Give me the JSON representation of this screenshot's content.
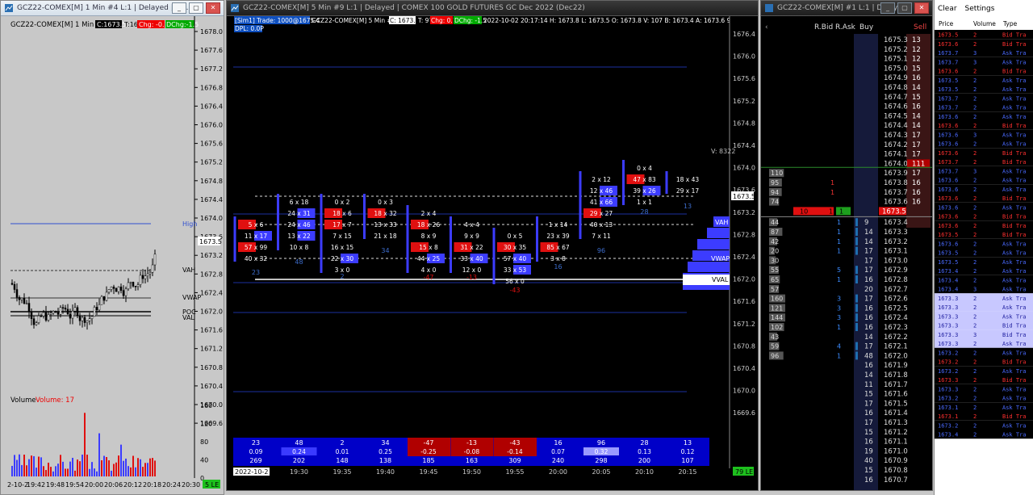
{
  "left_chart": {
    "title": "GCZ22-COMEX[M]  1 Min  #4 L:1 | Delayed | CO...",
    "header_instrument": "GCZ22-COMEX[M]  1 Min  #4",
    "close": "C:1673.5",
    "ticks": "T:16",
    "chg": "Chg: -0.1",
    "dchg": "DChg:-1.5",
    "price_labels": [
      "1678.0",
      "1677.6",
      "1677.2",
      "1676.8",
      "1676.4",
      "1676.0",
      "1675.6",
      "1675.2",
      "1674.8",
      "1674.4",
      "1674.0",
      "1673.6",
      "1673.2",
      "1672.8",
      "1672.4",
      "1672.0",
      "1671.6",
      "1671.2",
      "1670.8",
      "1670.4",
      "1670.0",
      "1669.6"
    ],
    "current_price": "1673.5",
    "level_labels": {
      "high": "High",
      "vah": "VAH",
      "vwap": "VWAP",
      "poc": "POC",
      "val": "VAL"
    },
    "volume_title": "Volume",
    "volume_value": "Volume: 17",
    "volume_axis": [
      "160",
      "120",
      "80",
      "40",
      "0"
    ],
    "time_labels": [
      "2-10-2",
      "19:42",
      "19:48",
      "19:54",
      "20:00",
      "20:06",
      "20:12",
      "20:18",
      "20:24",
      "20:30"
    ],
    "badge": "5 LE"
  },
  "main_chart": {
    "title": "GCZ22-COMEX[M]  5 Min  #9 L:1 | Delayed | COMEX 100 GOLD FUTURES GC Dec 2022 (Dec22)",
    "sim_trade": "[Sim1]  Trade: 1000@1675.4",
    "instrument": "GCZ22-COMEX[M]  5 Min  #9",
    "close": "C: 1673.5",
    "ticks": "T: 97",
    "chg": "Chg: 0.1",
    "dchg": "DChg: -1.5",
    "info": "2022-10-02  20:17:14  H: 1673.8  L: 1673.5  O: 1673.8  V: 107  B: 1673.4  A: 1673.6  9x12  TR: 2m 45",
    "dpl": "DPL: 0.0P",
    "price_labels": [
      "1676.4",
      "1676.0",
      "1675.6",
      "1675.2",
      "1674.8",
      "1674.4",
      "1674.0",
      "1673.6",
      "1673.2",
      "1672.8",
      "1672.4",
      "1672.0",
      "1671.6",
      "1671.2",
      "1670.8",
      "1670.4",
      "1670.0",
      "1669.6"
    ],
    "current_price": "1673.5",
    "volume_label": "V: 8322",
    "profile_labels": {
      "vah": "VAH",
      "vwap": "VWAP",
      "val": "VVAL"
    },
    "columns": [
      {
        "time": "19:30",
        "delta": "23",
        "ratio": "0.09",
        "vol": "269"
      },
      {
        "time": "19:35",
        "delta": "48",
        "ratio": "0.24",
        "vol": "202"
      },
      {
        "time": "19:40",
        "delta": "2",
        "ratio": "0.01",
        "vol": "148"
      },
      {
        "time": "19:45",
        "delta": "34",
        "ratio": "0.25",
        "vol": "138"
      },
      {
        "time": "19:50",
        "delta": "-47",
        "ratio": "-0.25",
        "vol": "185"
      },
      {
        "time": "19:55",
        "delta": "-13",
        "ratio": "-0.08",
        "vol": "163"
      },
      {
        "time": "20:00",
        "delta": "-43",
        "ratio": "-0.14",
        "vol": "309"
      },
      {
        "time": "20:05",
        "delta": "16",
        "ratio": "0.07",
        "vol": "240"
      },
      {
        "time": "20:10",
        "delta": "96",
        "ratio": "0.32",
        "vol": "298"
      },
      {
        "time": "20:15",
        "delta": "28",
        "ratio": "0.13",
        "vol": "200"
      },
      {
        "time": "",
        "delta": "13",
        "ratio": "0.12",
        "vol": "107"
      }
    ],
    "first_date": "2022-10-2",
    "badge": "79 LE"
  },
  "dom": {
    "title": "GCZ22-COMEX[M] #1 L:1 | Delaye...",
    "headers": {
      "rbid": "R.Bid",
      "rask": "R.Ask",
      "buy": "Buy",
      "sell": "Sell"
    },
    "ask_rows": [
      {
        "price": "1675.3",
        "sell": "13"
      },
      {
        "price": "1675.2",
        "sell": "12"
      },
      {
        "price": "1675.1",
        "sell": "12"
      },
      {
        "price": "1675.0",
        "sell": "15"
      },
      {
        "price": "1674.9",
        "sell": "16"
      },
      {
        "price": "1674.8",
        "sell": "14"
      },
      {
        "price": "1674.7",
        "sell": "15"
      },
      {
        "price": "1674.6",
        "sell": "16"
      },
      {
        "price": "1674.5",
        "sell": "14"
      },
      {
        "price": "1674.4",
        "sell": "14"
      },
      {
        "price": "1674.3",
        "sell": "17"
      },
      {
        "price": "1674.2",
        "sell": "17"
      },
      {
        "price": "1674.1",
        "sell": "17"
      },
      {
        "price": "1674.0",
        "sell": "111"
      },
      {
        "price": "1673.9",
        "sell": "17"
      },
      {
        "price": "1673.8",
        "sell": "16"
      },
      {
        "price": "1673.7",
        "sell": "16"
      },
      {
        "price": "1673.6",
        "sell": "16"
      }
    ],
    "ask_sizes": [
      "4",
      "110",
      "95",
      "94",
      "74"
    ],
    "rask_values": [
      "1",
      "1"
    ],
    "last_row": {
      "price": "1673.5",
      "bid": "10",
      "rbid": "1",
      "rask": "1"
    },
    "bid_rows": [
      {
        "price": "1673.4",
        "buy": "9",
        "size": "44",
        "rbid": "1"
      },
      {
        "price": "1673.3",
        "buy": "14",
        "size": "87",
        "rbid": "1"
      },
      {
        "price": "1673.2",
        "buy": "14",
        "size": "42",
        "rbid": "1"
      },
      {
        "price": "1673.1",
        "buy": "17",
        "size": "20",
        "rbid": "1"
      },
      {
        "price": "1673.0",
        "buy": "17",
        "size": "30",
        "rbid": ""
      },
      {
        "price": "1672.9",
        "buy": "17",
        "size": "55",
        "rbid": "5"
      },
      {
        "price": "1672.8",
        "buy": "16",
        "size": "65",
        "rbid": "1"
      },
      {
        "price": "1672.7",
        "buy": "20",
        "size": "57",
        "rbid": ""
      },
      {
        "price": "1672.6",
        "buy": "17",
        "size": "160",
        "rbid": "3"
      },
      {
        "price": "1672.5",
        "buy": "16",
        "size": "121",
        "rbid": "3"
      },
      {
        "price": "1672.4",
        "buy": "16",
        "size": "144",
        "rbid": "3"
      },
      {
        "price": "1672.3",
        "buy": "16",
        "size": "102",
        "rbid": "1"
      },
      {
        "price": "1672.2",
        "buy": "14",
        "size": "43",
        "rbid": ""
      },
      {
        "price": "1672.1",
        "buy": "17",
        "size": "59",
        "rbid": "4"
      },
      {
        "price": "1672.0",
        "buy": "48",
        "size": "96",
        "rbid": "1"
      },
      {
        "price": "1671.9",
        "buy": "16",
        "size": "",
        "rbid": ""
      },
      {
        "price": "1671.8",
        "buy": "14",
        "size": "",
        "rbid": ""
      },
      {
        "price": "1671.7",
        "buy": "11",
        "size": "",
        "rbid": ""
      },
      {
        "price": "1671.6",
        "buy": "15",
        "size": "",
        "rbid": ""
      },
      {
        "price": "1671.5",
        "buy": "17",
        "size": "",
        "rbid": ""
      },
      {
        "price": "1671.4",
        "buy": "16",
        "size": "",
        "rbid": ""
      },
      {
        "price": "1671.3",
        "buy": "17",
        "size": "",
        "rbid": ""
      },
      {
        "price": "1671.2",
        "buy": "15",
        "size": "",
        "rbid": ""
      },
      {
        "price": "1671.1",
        "buy": "16",
        "size": "",
        "rbid": ""
      },
      {
        "price": "1671.0",
        "buy": "19",
        "size": "",
        "rbid": ""
      },
      {
        "price": "1670.9",
        "buy": "40",
        "size": "",
        "rbid": ""
      },
      {
        "price": "1670.8",
        "buy": "15",
        "size": "",
        "rbid": ""
      },
      {
        "price": "1670.7",
        "buy": "16",
        "size": "",
        "rbid": ""
      }
    ]
  },
  "tas": {
    "menu": {
      "clear": "Clear",
      "settings": "Settings"
    },
    "headers": {
      "price": "Price",
      "volume": "Volume",
      "type": "Type"
    },
    "rows": [
      {
        "price": "1673.5",
        "volume": "2",
        "type": "Bid Tra"
      },
      {
        "price": "1673.6",
        "volume": "2",
        "type": "Bid Tra"
      },
      {
        "price": "1673.7",
        "volume": "3",
        "type": "Ask Tra"
      },
      {
        "price": "1673.7",
        "volume": "3",
        "type": "Ask Tra"
      },
      {
        "price": "1673.6",
        "volume": "2",
        "type": "Bid Tra"
      },
      {
        "price": "1673.5",
        "volume": "2",
        "type": "Ask Tra"
      },
      {
        "price": "1673.5",
        "volume": "2",
        "type": "Ask Tra"
      },
      {
        "price": "1673.7",
        "volume": "2",
        "type": "Ask Tra"
      },
      {
        "price": "1673.7",
        "volume": "2",
        "type": "Ask Tra"
      },
      {
        "price": "1673.6",
        "volume": "2",
        "type": "Ask Tra"
      },
      {
        "price": "1673.6",
        "volume": "2",
        "type": "Bid Tra"
      },
      {
        "price": "1673.6",
        "volume": "3",
        "type": "Ask Tra"
      },
      {
        "price": "1673.6",
        "volume": "2",
        "type": "Ask Tra"
      },
      {
        "price": "1673.6",
        "volume": "2",
        "type": "Bid Tra"
      },
      {
        "price": "1673.7",
        "volume": "2",
        "type": "Bid Tra"
      },
      {
        "price": "1673.7",
        "volume": "3",
        "type": "Ask Tra"
      },
      {
        "price": "1673.6",
        "volume": "2",
        "type": "Ask Tra"
      },
      {
        "price": "1673.6",
        "volume": "2",
        "type": "Ask Tra"
      },
      {
        "price": "1673.6",
        "volume": "2",
        "type": "Bid Tra"
      },
      {
        "price": "1673.6",
        "volume": "2",
        "type": "Ask Tra"
      },
      {
        "price": "1673.6",
        "volume": "2",
        "type": "Bid Tra"
      },
      {
        "price": "1673.6",
        "volume": "2",
        "type": "Bid Tra"
      },
      {
        "price": "1673.5",
        "volume": "2",
        "type": "Bid Tra"
      },
      {
        "price": "1673.6",
        "volume": "2",
        "type": "Ask Tra"
      },
      {
        "price": "1673.5",
        "volume": "2",
        "type": "Ask Tra"
      },
      {
        "price": "1673.5",
        "volume": "2",
        "type": "Ask Tra"
      },
      {
        "price": "1673.4",
        "volume": "2",
        "type": "Ask Tra"
      },
      {
        "price": "1673.4",
        "volume": "2",
        "type": "Ask Tra"
      },
      {
        "price": "1673.4",
        "volume": "3",
        "type": "Ask Tra"
      },
      {
        "price": "1673.3",
        "volume": "2",
        "type": "Ask Tra"
      },
      {
        "price": "1673.3",
        "volume": "2",
        "type": "Ask Tra"
      },
      {
        "price": "1673.3",
        "volume": "2",
        "type": "Ask Tra"
      },
      {
        "price": "1673.3",
        "volume": "2",
        "type": "Bid Tra"
      },
      {
        "price": "1673.3",
        "volume": "3",
        "type": "Bid Tra"
      },
      {
        "price": "1673.3",
        "volume": "2",
        "type": "Ask Tra"
      },
      {
        "price": "1673.2",
        "volume": "2",
        "type": "Ask Tra"
      },
      {
        "price": "1673.2",
        "volume": "2",
        "type": "Bid Tra"
      },
      {
        "price": "1673.2",
        "volume": "2",
        "type": "Ask Tra"
      },
      {
        "price": "1673.3",
        "volume": "2",
        "type": "Bid Tra"
      },
      {
        "price": "1673.3",
        "volume": "2",
        "type": "Ask Tra"
      },
      {
        "price": "1673.2",
        "volume": "2",
        "type": "Ask Tra"
      },
      {
        "price": "1673.1",
        "volume": "2",
        "type": "Ask Tra"
      },
      {
        "price": "1673.1",
        "volume": "2",
        "type": "Bid Tra"
      },
      {
        "price": "1673.2",
        "volume": "2",
        "type": "Ask Tra"
      },
      {
        "price": "1673.4",
        "volume": "2",
        "type": "Ask Tra"
      }
    ]
  },
  "colors": {
    "bg": "#000000",
    "ask": "#3c3cff",
    "bid": "#e01010",
    "panel": "#c8c8c8",
    "axis": "#d0d0d0",
    "highlight": "#c8c8ff"
  }
}
